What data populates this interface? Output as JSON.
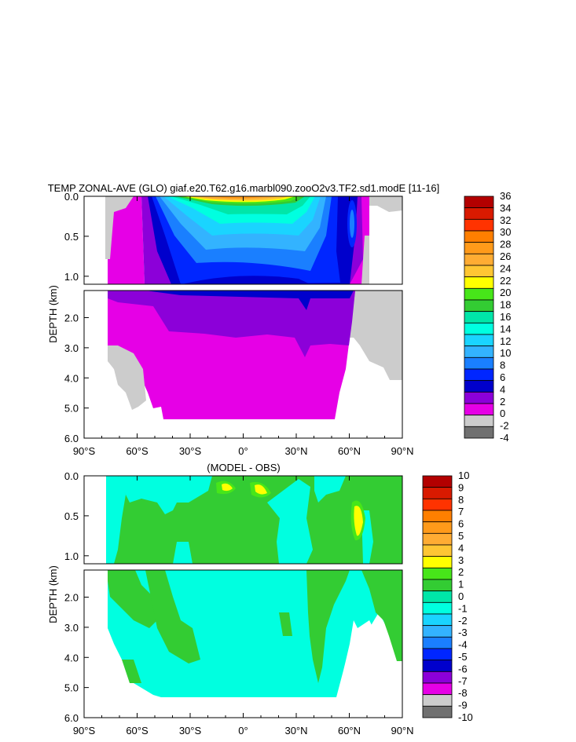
{
  "chart_data": [
    {
      "type": "heatmap",
      "title": "TEMP ZONAL-AVE (GLO) giaf.e20.T62.g16.marbl090.zooO2v3.TF2.sd1.modE [11-16]",
      "ylabel": "DEPTH (km)",
      "x_ticks": [
        "90°S",
        "60°S",
        "30°S",
        "0°",
        "30°N",
        "60°N",
        "90°N"
      ],
      "x_range": [
        -90,
        90
      ],
      "y_upper_ticks": [
        "0.0",
        "0.5",
        "1.0"
      ],
      "y_upper_range_km": [
        0,
        1.1
      ],
      "y_lower_ticks": [
        "2.0",
        "3.0",
        "4.0",
        "5.0",
        "6.0"
      ],
      "y_lower_range_km": [
        1.1,
        6.0
      ],
      "colorbar_levels": [
        36,
        34,
        32,
        30,
        28,
        26,
        24,
        22,
        20,
        18,
        16,
        14,
        12,
        10,
        8,
        6,
        4,
        2,
        0,
        -2,
        -4
      ],
      "colorbar_colors": [
        "#b30000",
        "#d91a00",
        "#ff3300",
        "#ff7f00",
        "#ff9a1a",
        "#ffac33",
        "#ffc633",
        "#ffff00",
        "#47e619",
        "#33cc33",
        "#00e6a8",
        "#00ffe0",
        "#1ad4ff",
        "#33b3ff",
        "#1a7fff",
        "#0026ff",
        "#0000cc",
        "#8c00d9",
        "#e600e6",
        "#cccccc",
        "#707070"
      ]
    },
    {
      "type": "heatmap",
      "title": "(MODEL - OBS)",
      "ylabel": "DEPTH (km)",
      "x_ticks": [
        "90°S",
        "60°S",
        "30°S",
        "0°",
        "30°N",
        "60°N",
        "90°N"
      ],
      "x_range": [
        -90,
        90
      ],
      "y_upper_ticks": [
        "0.0",
        "0.5",
        "1.0"
      ],
      "y_upper_range_km": [
        0,
        1.1
      ],
      "y_lower_ticks": [
        "2.0",
        "3.0",
        "4.0",
        "5.0",
        "6.0"
      ],
      "y_lower_range_km": [
        1.1,
        6.0
      ],
      "colorbar_levels": [
        10,
        9,
        8,
        7,
        6,
        5,
        4,
        3,
        2,
        1,
        0,
        -1,
        -2,
        -3,
        -4,
        -5,
        -6,
        -7,
        -8,
        -9,
        -10
      ],
      "colorbar_colors": [
        "#b30000",
        "#d91a00",
        "#ff3300",
        "#ff7f00",
        "#ff9a1a",
        "#ffac33",
        "#ffc633",
        "#ffff00",
        "#47e619",
        "#33cc33",
        "#00e6a8",
        "#00ffe0",
        "#1ad4ff",
        "#33b3ff",
        "#1a7fff",
        "#0026ff",
        "#0000cc",
        "#8c00d9",
        "#e600e6",
        "#cccccc",
        "#707070"
      ]
    }
  ]
}
